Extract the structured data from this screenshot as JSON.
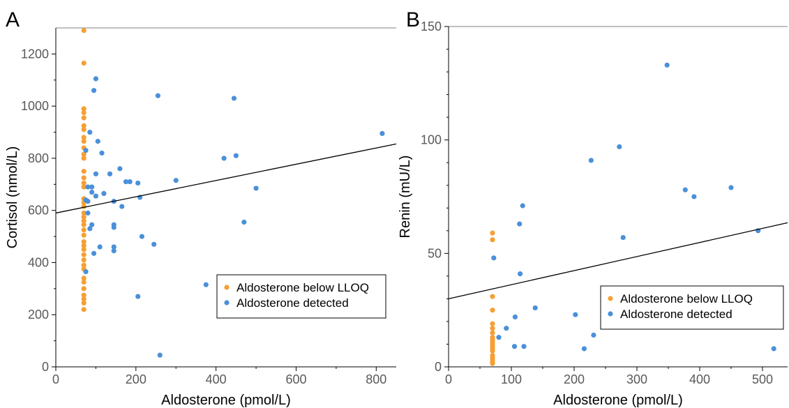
{
  "colors": {
    "below": "#f5a033",
    "detected": "#4a90d9",
    "line": "#000000",
    "axis": "#000000"
  },
  "chart_data": [
    {
      "panel": "A",
      "type": "scatter",
      "xlabel": "Aldosterone (pmol/L)",
      "ylabel": "Cortisol (nmol/L)",
      "xlim": [
        0,
        850
      ],
      "ylim": [
        0,
        1300
      ],
      "xticks": [
        0,
        200,
        400,
        600,
        800
      ],
      "yticks": [
        0,
        200,
        400,
        600,
        800,
        1000,
        1200
      ],
      "legend_position": "bottom-right",
      "series": [
        {
          "name": "Aldosterone below LLOQ",
          "color": "#f5a033",
          "points": [
            [
              70,
              1290
            ],
            [
              70,
              1165
            ],
            [
              70,
              990
            ],
            [
              70,
              975
            ],
            [
              70,
              955
            ],
            [
              70,
              925
            ],
            [
              70,
              910
            ],
            [
              70,
              880
            ],
            [
              70,
              865
            ],
            [
              70,
              840
            ],
            [
              70,
              815
            ],
            [
              70,
              800
            ],
            [
              70,
              750
            ],
            [
              70,
              725
            ],
            [
              70,
              705
            ],
            [
              70,
              690
            ],
            [
              70,
              645
            ],
            [
              70,
              630
            ],
            [
              70,
              615
            ],
            [
              70,
              590
            ],
            [
              70,
              575
            ],
            [
              70,
              560
            ],
            [
              70,
              545
            ],
            [
              70,
              525
            ],
            [
              70,
              505
            ],
            [
              70,
              480
            ],
            [
              70,
              465
            ],
            [
              70,
              450
            ],
            [
              70,
              430
            ],
            [
              70,
              410
            ],
            [
              70,
              390
            ],
            [
              70,
              375
            ],
            [
              70,
              340
            ],
            [
              70,
              325
            ],
            [
              70,
              300
            ],
            [
              70,
              275
            ],
            [
              70,
              260
            ],
            [
              70,
              245
            ],
            [
              70,
              220
            ]
          ]
        },
        {
          "name": "Aldosterone detected",
          "color": "#4a90d9",
          "points": [
            [
              100,
              1105
            ],
            [
              95,
              1060
            ],
            [
              75,
              830
            ],
            [
              85,
              900
            ],
            [
              105,
              865
            ],
            [
              115,
              820
            ],
            [
              100,
              740
            ],
            [
              135,
              740
            ],
            [
              160,
              760
            ],
            [
              175,
              710
            ],
            [
              185,
              710
            ],
            [
              205,
              705
            ],
            [
              210,
              650
            ],
            [
              80,
              690
            ],
            [
              90,
              690
            ],
            [
              90,
              670
            ],
            [
              100,
              655
            ],
            [
              120,
              665
            ],
            [
              145,
              635
            ],
            [
              165,
              615
            ],
            [
              75,
              640
            ],
            [
              80,
              635
            ],
            [
              80,
              590
            ],
            [
              90,
              545
            ],
            [
              85,
              530
            ],
            [
              145,
              545
            ],
            [
              145,
              535
            ],
            [
              110,
              460
            ],
            [
              145,
              460
            ],
            [
              145,
              445
            ],
            [
              95,
              435
            ],
            [
              75,
              365
            ],
            [
              215,
              500
            ],
            [
              245,
              470
            ],
            [
              255,
              1040
            ],
            [
              300,
              715
            ],
            [
              420,
              800
            ],
            [
              445,
              1030
            ],
            [
              450,
              810
            ],
            [
              500,
              685
            ],
            [
              470,
              555
            ],
            [
              375,
              315
            ],
            [
              205,
              270
            ],
            [
              260,
              45
            ],
            [
              815,
              895
            ]
          ]
        }
      ],
      "trendline": {
        "x": [
          0,
          850
        ],
        "y": [
          590,
          855
        ]
      }
    },
    {
      "panel": "B",
      "type": "scatter",
      "xlabel": "Aldosterone (pmol/L)",
      "ylabel": "Renin (mU/L)",
      "xlim": [
        0,
        540
      ],
      "ylim": [
        0,
        150
      ],
      "xticks": [
        0,
        100,
        200,
        300,
        400,
        500
      ],
      "yticks": [
        0,
        50,
        100,
        150
      ],
      "legend_position": "bottom-right",
      "series": [
        {
          "name": "Aldosterone below LLOQ",
          "color": "#f5a033",
          "points": [
            [
              70,
              59
            ],
            [
              70,
              56
            ],
            [
              70,
              31
            ],
            [
              70,
              25
            ],
            [
              70,
              19
            ],
            [
              70,
              17
            ],
            [
              70,
              15
            ],
            [
              70,
              13
            ],
            [
              70,
              12
            ],
            [
              70,
              11
            ],
            [
              70,
              10
            ],
            [
              70,
              9
            ],
            [
              70,
              8
            ],
            [
              70,
              7
            ],
            [
              70,
              5
            ],
            [
              70,
              4
            ],
            [
              70,
              3
            ],
            [
              70,
              2
            ],
            [
              70,
              1.5
            ]
          ]
        },
        {
          "name": "Aldosterone detected",
          "color": "#4a90d9",
          "points": [
            [
              72,
              48
            ],
            [
              118,
              71
            ],
            [
              113,
              63
            ],
            [
              114,
              41
            ],
            [
              92,
              17
            ],
            [
              80,
              13
            ],
            [
              106,
              22
            ],
            [
              105,
              9
            ],
            [
              120,
              9
            ],
            [
              138,
              26
            ],
            [
              202,
              23
            ],
            [
              216,
              8
            ],
            [
              227,
              91
            ],
            [
              231,
              14
            ],
            [
              249,
              34
            ],
            [
              272,
              97
            ],
            [
              278,
              57
            ],
            [
              348,
              133
            ],
            [
              377,
              78
            ],
            [
              391,
              75
            ],
            [
              450,
              79
            ],
            [
              493,
              60
            ],
            [
              518,
              8
            ]
          ]
        }
      ],
      "trendline": {
        "x": [
          0,
          540
        ],
        "y": [
          30,
          63.5
        ]
      }
    }
  ]
}
